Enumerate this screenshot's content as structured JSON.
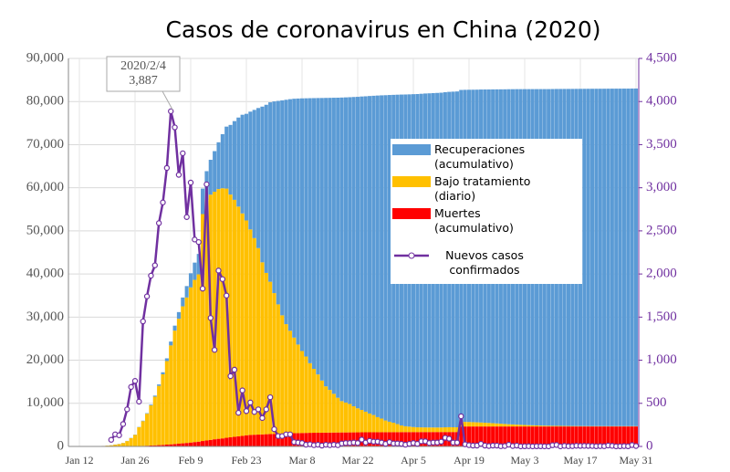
{
  "chart_data": {
    "type": "bar",
    "title": "Casos de coronavirus en China (2020)",
    "annotation": [
      "2020/2/4",
      "3,887"
    ],
    "categories": [
      "Jan 12",
      null,
      null,
      null,
      null,
      null,
      null,
      null,
      null,
      null,
      null,
      null,
      null,
      null,
      "Jan 26",
      null,
      null,
      null,
      null,
      null,
      null,
      null,
      null,
      null,
      null,
      null,
      null,
      null,
      "Feb 9",
      null,
      null,
      null,
      null,
      null,
      null,
      null,
      null,
      null,
      null,
      null,
      null,
      null,
      "Feb 23",
      null,
      null,
      null,
      null,
      null,
      null,
      null,
      null,
      null,
      null,
      null,
      null,
      null,
      "Mar 8",
      null,
      null,
      null,
      null,
      null,
      null,
      null,
      null,
      null,
      null,
      null,
      null,
      null,
      "Mar 22",
      null,
      null,
      null,
      null,
      null,
      null,
      null,
      null,
      null,
      null,
      null,
      null,
      null,
      "Apr 5",
      null,
      null,
      null,
      null,
      null,
      null,
      null,
      null,
      null,
      null,
      null,
      null,
      null,
      "Apr 19",
      null,
      null,
      null,
      null,
      null,
      null,
      null,
      null,
      null,
      null,
      null,
      null,
      null,
      "May 3",
      null,
      null,
      null,
      null,
      null,
      null,
      null,
      null,
      null,
      null,
      null,
      null,
      null,
      "May 17",
      null,
      null,
      null,
      null,
      null,
      null,
      null,
      null,
      null,
      null,
      null,
      null,
      null,
      "May 31"
    ],
    "series": [
      {
        "name": "Recuperaciones (acumulativo)",
        "color": "#5b9bd5",
        "values": [
          2,
          2,
          2,
          2,
          3,
          4,
          5,
          10,
          25,
          28,
          34,
          38,
          39,
          49,
          51,
          60,
          103,
          124,
          171,
          243,
          328,
          475,
          632,
          892,
          1153,
          1540,
          2050,
          2649,
          3281,
          3996,
          4740,
          5911,
          6723,
          8096,
          9419,
          10844,
          12552,
          14376,
          16155,
          18264,
          20659,
          22888,
          24734,
          27323,
          29745,
          32495,
          36117,
          39002,
          41625,
          44462,
          47204,
          49856,
          52045,
          53726,
          55404,
          57065,
          58600,
          59897,
          61475,
          62793,
          64111,
          65541,
          66911,
          67749,
          68679,
          69601,
          70420,
          70790,
          71150,
          71740,
          72244,
          72703,
          73159,
          73650,
          74051,
          74600,
          74978,
          75448,
          75790,
          76052,
          76408,
          76755,
          76964,
          77078,
          77207,
          77309,
          77379,
          77450,
          77501,
          77554,
          77610,
          77653,
          77719,
          77788,
          77843,
          77899,
          76980,
          77027,
          77063,
          77115,
          77166,
          77236,
          77296,
          77352,
          77424,
          77495,
          77557,
          77623,
          77705,
          77759,
          77821,
          77862,
          77904,
          77947,
          77978,
          78010,
          78042,
          78063,
          78084,
          78118,
          78145,
          78156,
          78173,
          78186,
          78200,
          78213,
          78224,
          78236,
          78247,
          78252,
          78256,
          78262,
          78267,
          78280,
          78287,
          78290,
          78292,
          78296,
          78298,
          78314,
          78319
        ]
      },
      {
        "name": "Bajo tratamiento (diario)",
        "color": "#ffc000",
        "values": [
          38,
          38,
          38,
          38,
          40,
          56,
          113,
          185,
          260,
          403,
          520,
          767,
          1207,
          1870,
          2613,
          4349,
          5739,
          7417,
          9308,
          11289,
          13748,
          16369,
          19381,
          22942,
          26302,
          28985,
          31774,
          33738,
          35982,
          37626,
          38800,
          52634,
          55748,
          56873,
          57416,
          57934,
          58016,
          57805,
          56303,
          54965,
          53284,
          51606,
          49824,
          47672,
          45604,
          43258,
          39919,
          37414,
          35329,
          32652,
          30004,
          27433,
          25352,
          23784,
          22177,
          20533,
          19016,
          17721,
          16145,
          14831,
          13526,
          12094,
          10734,
          9898,
          8976,
          8056,
          7263,
          6929,
          6603,
          6053,
          5579,
          5191,
          4778,
          4348,
          3997,
          3499,
          3161,
          2718,
          2423,
          2190,
          1863,
          1543,
          1349,
          1262,
          1170,
          1100,
          1090,
          1080,
          1070,
          1060,
          1050,
          1060,
          1100,
          1120,
          1110,
          1100,
          1080,
          1060,
          1040,
          1000,
          960,
          920,
          870,
          820,
          760,
          700,
          640,
          580,
          520,
          470,
          420,
          380,
          340,
          300,
          270,
          240,
          210,
          190,
          170,
          150,
          140,
          130,
          120,
          110,
          100,
          95,
          90,
          85,
          80,
          80,
          78,
          76,
          74,
          72,
          72,
          70,
          70,
          70,
          70,
          70,
          70
        ]
      },
      {
        "name": "Muertes (acumulativo)",
        "color": "#ff0000",
        "values": [
          1,
          1,
          1,
          1,
          2,
          2,
          3,
          3,
          6,
          9,
          17,
          25,
          41,
          56,
          80,
          106,
          132,
          170,
          213,
          259,
          304,
          361,
          425,
          490,
          563,
          636,
          722,
          811,
          908,
          1016,
          1113,
          1259,
          1380,
          1523,
          1665,
          1770,
          1868,
          2004,
          2118,
          2236,
          2345,
          2442,
          2592,
          2663,
          2715,
          2744,
          2788,
          2835,
          2870,
          2912,
          2943,
          2981,
          3012,
          3042,
          3070,
          3097,
          3119,
          3136,
          3158,
          3169,
          3176,
          3189,
          3199,
          3213,
          3226,
          3237,
          3245,
          3248,
          3255,
          3261,
          3270,
          3277,
          3281,
          3287,
          3292,
          3295,
          3300,
          3304,
          3305,
          3312,
          3318,
          3322,
          3326,
          3329,
          3331,
          3331,
          3333,
          3335,
          3336,
          3339,
          3339,
          3339,
          3341,
          3341,
          3342,
          3342,
          4632,
          4632,
          4632,
          4632,
          4632,
          4632,
          4632,
          4632,
          4632,
          4632,
          4633,
          4633,
          4633,
          4633,
          4633,
          4633,
          4633,
          4633,
          4633,
          4633,
          4633,
          4633,
          4633,
          4633,
          4633,
          4633,
          4633,
          4633,
          4633,
          4633,
          4633,
          4633,
          4633,
          4633,
          4633,
          4633,
          4633,
          4633,
          4633,
          4633,
          4633,
          4633,
          4633,
          4633,
          4633
        ]
      },
      {
        "name": "Nuevos casos confirmados",
        "color": "#7030a0",
        "type": "line",
        "axis": "y2",
        "values": [
          null,
          null,
          null,
          null,
          null,
          null,
          null,
          null,
          77,
          140,
          130,
          260,
          430,
          690,
          760,
          520,
          1450,
          1740,
          1980,
          2100,
          2590,
          2830,
          3230,
          3887,
          3700,
          3150,
          3400,
          2660,
          3060,
          2400,
          2370,
          1830,
          3040,
          1490,
          1120,
          2040,
          1940,
          1750,
          815,
          890,
          390,
          650,
          410,
          510,
          400,
          430,
          330,
          430,
          570,
          200,
          120,
          120,
          140,
          140,
          50,
          45,
          40,
          20,
          25,
          15,
          20,
          10,
          20,
          15,
          20,
          15,
          35,
          40,
          40,
          45,
          40,
          80,
          45,
          65,
          55,
          55,
          45,
          30,
          50,
          35,
          35,
          30,
          20,
          30,
          40,
          30,
          60,
          60,
          40,
          45,
          45,
          55,
          100,
          90,
          45,
          45,
          350,
          25,
          15,
          10,
          10,
          30,
          10,
          5,
          10,
          10,
          3,
          5,
          20,
          5,
          10,
          1,
          2,
          3,
          1,
          2,
          2,
          1,
          1,
          14,
          17,
          1,
          7,
          3,
          4,
          8,
          6,
          7,
          6,
          5,
          2,
          4,
          3,
          11,
          7,
          1,
          2,
          4,
          2,
          16,
          5
        ]
      }
    ],
    "ylim": [
      0,
      90000
    ],
    "yticks": [
      0,
      {
        "value": 10000,
        "label": "10,000"
      },
      {
        "value": 20000,
        "label": "20,000"
      },
      {
        "value": 30000,
        "label": "30,000"
      },
      {
        "value": 40000,
        "label": "40,000"
      },
      {
        "value": 50000,
        "label": "50,000"
      },
      {
        "value": 60000,
        "label": "60,000"
      },
      {
        "value": 70000,
        "label": "70,000"
      },
      {
        "value": 80000,
        "label": "80,000"
      },
      {
        "value": 90000,
        "label": "90,000"
      }
    ],
    "y2lim": [
      0,
      4500
    ],
    "y2ticks": [
      0,
      500,
      {
        "value": 1000,
        "label": "1,000"
      },
      {
        "value": 1500,
        "label": "1,500"
      },
      {
        "value": 2000,
        "label": "2,000"
      },
      {
        "value": 2500,
        "label": "2,500"
      },
      {
        "value": 3000,
        "label": "3,000"
      },
      {
        "value": 3500,
        "label": "3,500"
      },
      {
        "value": 4000,
        "label": "4,000"
      },
      {
        "value": 4500,
        "label": "4,500"
      }
    ],
    "grid": true
  }
}
